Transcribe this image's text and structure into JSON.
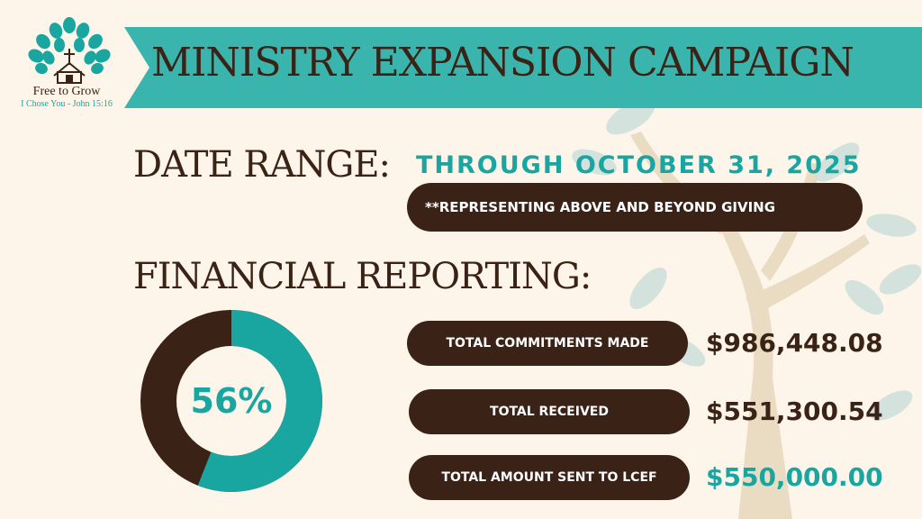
{
  "logo": {
    "name": "Free to Grow",
    "verse": "I Chose You - John 15:16"
  },
  "header": {
    "title": "MINISTRY EXPANSION CAMPAIGN"
  },
  "date_range": {
    "label": "DATE RANGE:",
    "value": "THROUGH OCTOBER 31, 2025",
    "note": "**REPRESENTING ABOVE AND BEYOND GIVING"
  },
  "financial": {
    "label": "FINANCIAL REPORTING:",
    "percent_label": "56%",
    "percent_value": 56,
    "items": [
      {
        "label": "TOTAL COMMITMENTS MADE",
        "amount": "$986,448.08"
      },
      {
        "label": "TOTAL RECEIVED",
        "amount": "$551,300.54"
      },
      {
        "label": "TOTAL AMOUNT SENT TO LCEF",
        "amount": "$550,000.00"
      }
    ]
  },
  "colors": {
    "teal": "#1aa6a0",
    "brown": "#3b2216",
    "cream": "#fdf5e9"
  }
}
